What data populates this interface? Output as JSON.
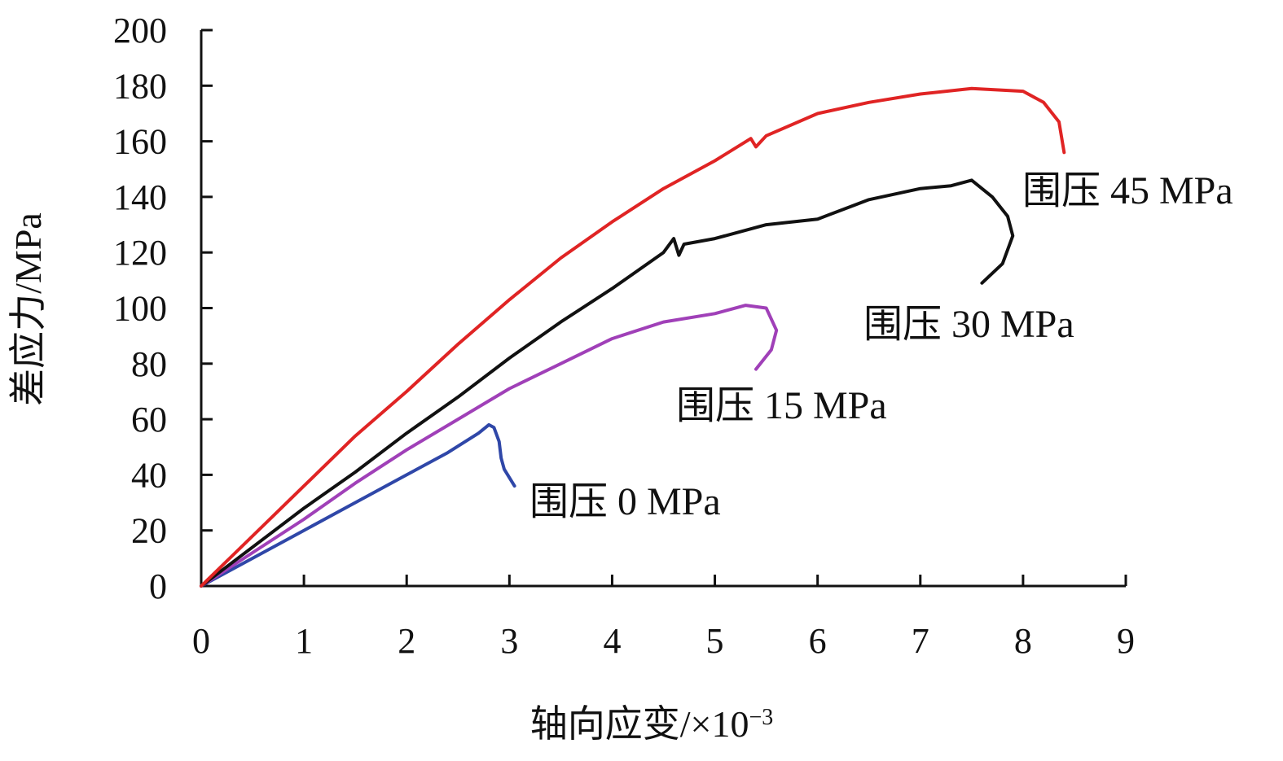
{
  "chart_data": {
    "type": "line",
    "title": "",
    "xlabel": "轴向应变/×10",
    "xlabel_sup": "−3",
    "ylabel": "差应力/MPa",
    "xlim": [
      0,
      9
    ],
    "ylim": [
      0,
      200
    ],
    "xticks": [
      0,
      1,
      2,
      3,
      4,
      5,
      6,
      7,
      8,
      9
    ],
    "yticks": [
      0,
      20,
      40,
      60,
      80,
      100,
      120,
      140,
      160,
      180,
      200
    ],
    "grid": false,
    "legend": "inline labels at curve ends",
    "series": [
      {
        "name": "围压 0 MPa",
        "color": "#2f47a8",
        "x": [
          0,
          0.5,
          1.0,
          1.5,
          2.0,
          2.4,
          2.7,
          2.8,
          2.85,
          2.9,
          2.92,
          2.95,
          3.05
        ],
        "y": [
          0,
          10,
          20,
          30,
          40,
          48,
          55,
          58,
          57,
          52,
          46,
          42,
          36
        ]
      },
      {
        "name": "围压 15 MPa",
        "color": "#a040b8",
        "x": [
          0,
          0.5,
          1.0,
          1.5,
          2.0,
          2.5,
          3.0,
          3.5,
          4.0,
          4.5,
          5.0,
          5.3,
          5.5,
          5.6,
          5.55,
          5.4
        ],
        "y": [
          0,
          12,
          24,
          37,
          49,
          60,
          71,
          80,
          89,
          95,
          98,
          101,
          100,
          92,
          85,
          78
        ]
      },
      {
        "name": "围压 30 MPa",
        "color": "#111111",
        "x": [
          0,
          0.5,
          1.0,
          1.5,
          2.0,
          2.5,
          3.0,
          3.5,
          4.0,
          4.5,
          4.6,
          4.65,
          4.7,
          5.0,
          5.5,
          6.0,
          6.5,
          7.0,
          7.3,
          7.5,
          7.7,
          7.85,
          7.9,
          7.8,
          7.6
        ],
        "y": [
          0,
          14,
          28,
          41,
          55,
          68,
          82,
          95,
          107,
          120,
          125,
          119,
          123,
          125,
          130,
          132,
          139,
          143,
          144,
          146,
          140,
          133,
          126,
          116,
          109
        ]
      },
      {
        "name": "围压 45 MPa",
        "color": "#e02424",
        "x": [
          0,
          0.5,
          1.0,
          1.5,
          2.0,
          2.5,
          3.0,
          3.5,
          4.0,
          4.5,
          5.0,
          5.35,
          5.4,
          5.5,
          6.0,
          6.5,
          7.0,
          7.5,
          8.0,
          8.2,
          8.35,
          8.4
        ],
        "y": [
          0,
          18,
          36,
          54,
          70,
          87,
          103,
          118,
          131,
          143,
          153,
          161,
          158,
          162,
          170,
          174,
          177,
          179,
          178,
          174,
          167,
          156
        ]
      }
    ]
  }
}
